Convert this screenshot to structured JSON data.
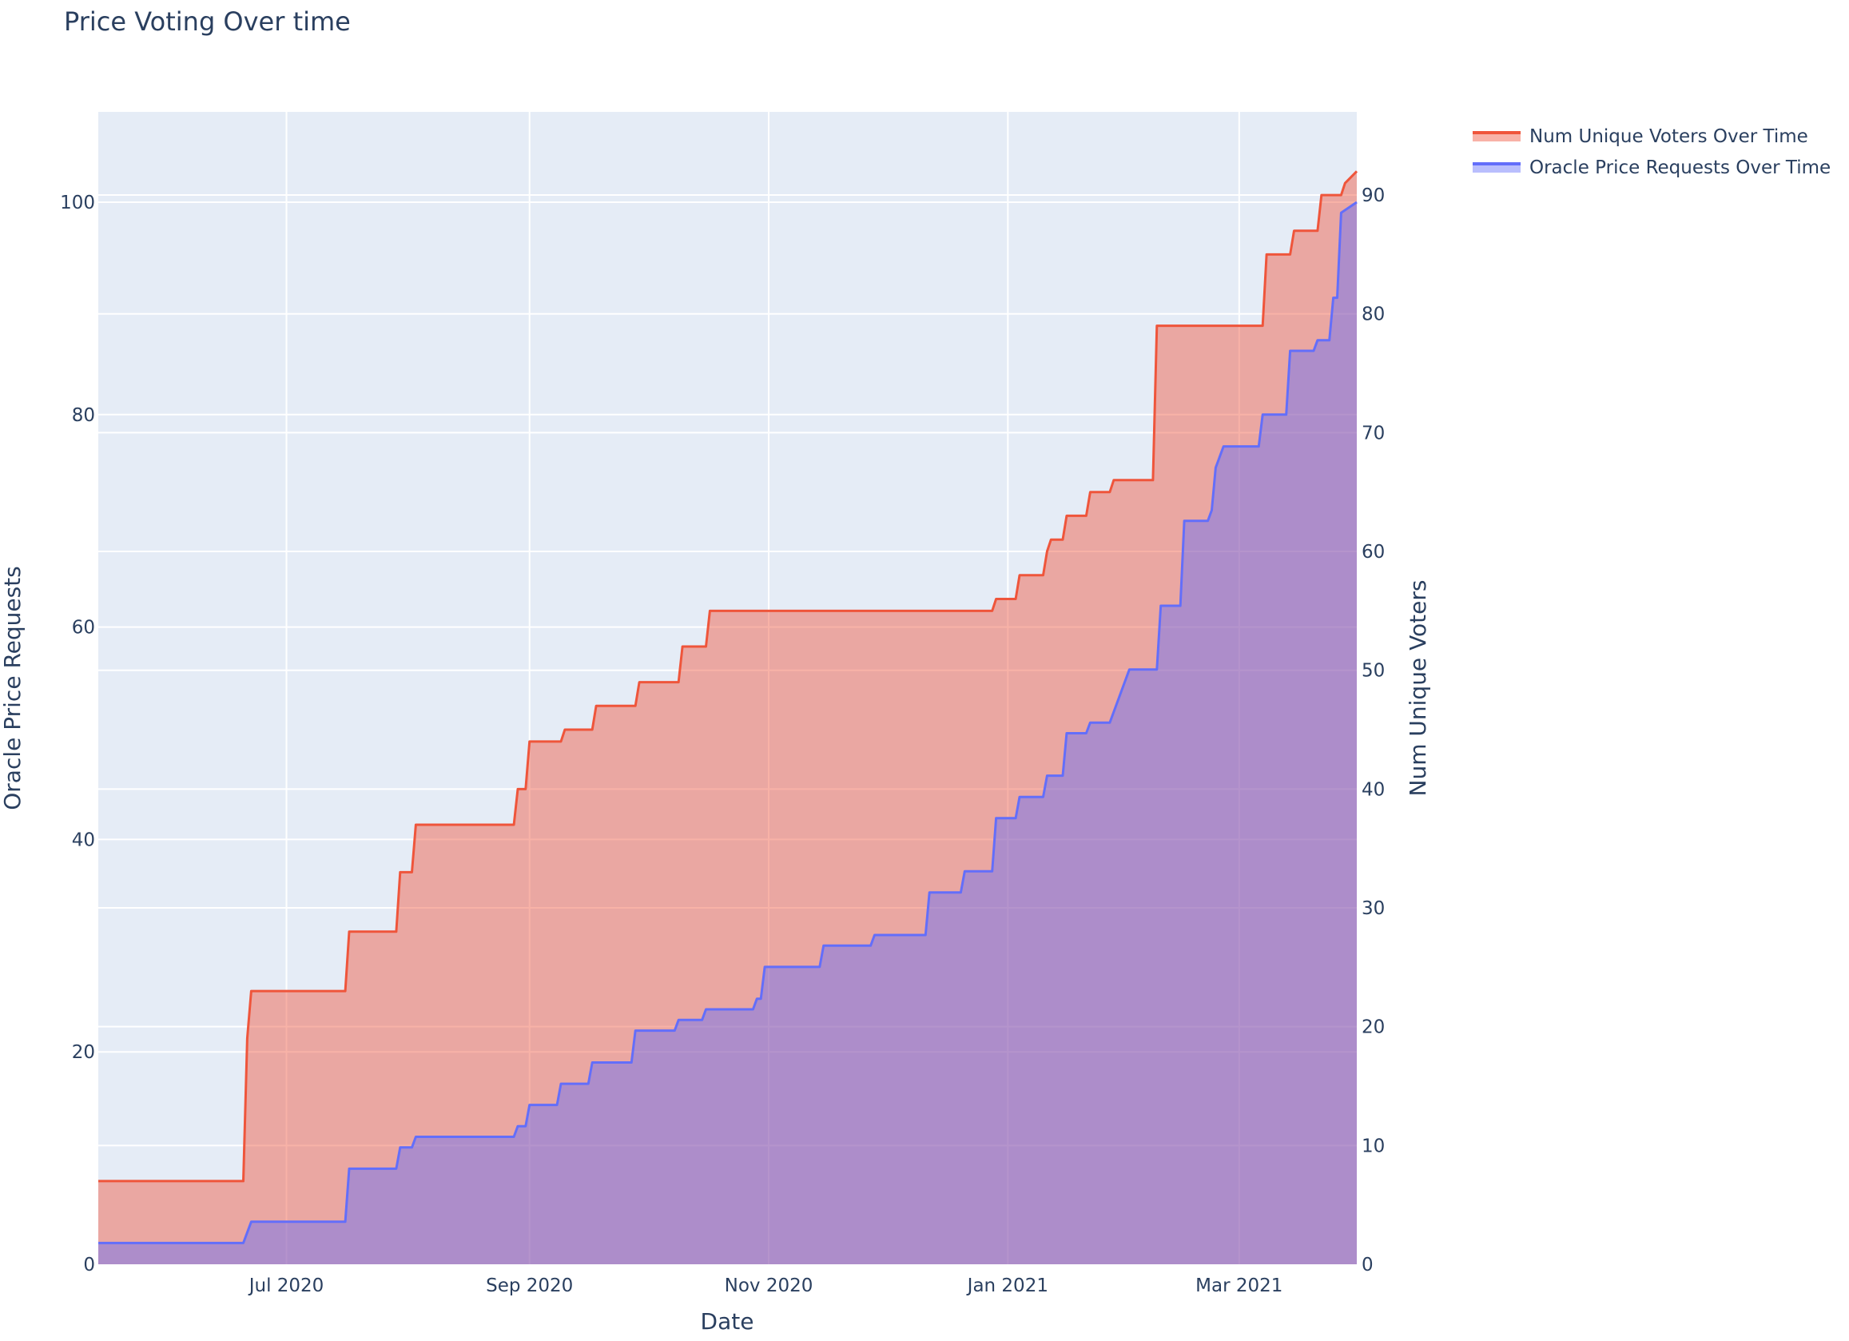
{
  "chart_data": {
    "type": "area",
    "title": "Price Voting Over time",
    "xlabel": "Date",
    "ylabel_left": "Oracle Price Requests",
    "ylabel_right": "Num Unique Voters",
    "x_range": [
      "2020-05-14",
      "2021-03-31"
    ],
    "ylim_left": [
      0,
      108.5
    ],
    "ylim_right": [
      0,
      97
    ],
    "x_ticks": [
      {
        "date": "2020-07-01",
        "label": "Jul 2020"
      },
      {
        "date": "2020-09-01",
        "label": "Sep 2020"
      },
      {
        "date": "2020-11-01",
        "label": "Nov 2020"
      },
      {
        "date": "2021-01-01",
        "label": "Jan 2021"
      },
      {
        "date": "2021-03-01",
        "label": "Mar 2021"
      }
    ],
    "y_ticks_left": [
      0,
      20,
      40,
      60,
      80,
      100
    ],
    "y_ticks_right": [
      0,
      10,
      20,
      30,
      40,
      50,
      60,
      70,
      80,
      90
    ],
    "grid": true,
    "legend_position": "top-right, outside plot",
    "colors": {
      "plot_bg": "#E5ECF6",
      "grid": "#ffffff",
      "voters_line": "#EF553B",
      "voters_fill": "#EF553B",
      "requests_line": "#636EFA",
      "requests_fill": "#636EFA",
      "text": "#2a3f5f"
    },
    "series": [
      {
        "name": "Num Unique Voters Over Time",
        "axis": "right",
        "line_color": "#EF553B",
        "x": [
          "2020-05-14",
          "2020-06-20",
          "2020-06-21",
          "2020-06-22",
          "2020-07-16",
          "2020-07-17",
          "2020-07-29",
          "2020-07-30",
          "2020-08-02",
          "2020-08-03",
          "2020-08-28",
          "2020-08-29",
          "2020-08-31",
          "2020-09-01",
          "2020-09-09",
          "2020-09-10",
          "2020-09-17",
          "2020-09-18",
          "2020-09-28",
          "2020-09-29",
          "2020-10-09",
          "2020-10-10",
          "2020-10-16",
          "2020-10-17",
          "2020-12-28",
          "2020-12-29",
          "2021-01-03",
          "2021-01-04",
          "2021-01-10",
          "2021-01-11",
          "2021-01-12",
          "2021-01-15",
          "2021-01-16",
          "2021-01-21",
          "2021-01-22",
          "2021-01-27",
          "2021-01-28",
          "2021-02-07",
          "2021-02-08",
          "2021-03-07",
          "2021-03-08",
          "2021-03-14",
          "2021-03-15",
          "2021-03-21",
          "2021-03-22",
          "2021-03-27",
          "2021-03-28",
          "2021-03-31"
        ],
        "values": [
          7,
          7,
          19,
          23,
          23,
          28,
          28,
          33,
          33,
          37,
          37,
          40,
          40,
          44,
          44,
          45,
          45,
          47,
          47,
          49,
          49,
          52,
          52,
          55,
          55,
          56,
          56,
          58,
          58,
          60,
          61,
          61,
          63,
          63,
          65,
          65,
          66,
          66,
          79,
          79,
          85,
          85,
          87,
          87,
          90,
          90,
          91,
          92
        ]
      },
      {
        "name": "Oracle Price Requests Over Time",
        "axis": "left",
        "line_color": "#636EFA",
        "x": [
          "2020-05-14",
          "2020-06-20",
          "2020-06-22",
          "2020-07-16",
          "2020-07-17",
          "2020-07-29",
          "2020-07-30",
          "2020-08-02",
          "2020-08-03",
          "2020-08-28",
          "2020-08-29",
          "2020-08-31",
          "2020-09-01",
          "2020-09-08",
          "2020-09-09",
          "2020-09-16",
          "2020-09-17",
          "2020-09-27",
          "2020-09-28",
          "2020-10-08",
          "2020-10-09",
          "2020-10-15",
          "2020-10-16",
          "2020-10-28",
          "2020-10-29",
          "2020-10-30",
          "2020-10-31",
          "2020-11-14",
          "2020-11-15",
          "2020-11-27",
          "2020-11-28",
          "2020-12-11",
          "2020-12-12",
          "2020-12-20",
          "2020-12-21",
          "2020-12-28",
          "2020-12-29",
          "2021-01-03",
          "2021-01-04",
          "2021-01-10",
          "2021-01-11",
          "2021-01-15",
          "2021-01-16",
          "2021-01-21",
          "2021-01-22",
          "2021-01-27",
          "2021-01-28",
          "2021-02-01",
          "2021-02-08",
          "2021-02-09",
          "2021-02-14",
          "2021-02-15",
          "2021-02-21",
          "2021-02-22",
          "2021-02-23",
          "2021-02-25",
          "2021-03-06",
          "2021-03-07",
          "2021-03-13",
          "2021-03-14",
          "2021-03-20",
          "2021-03-21",
          "2021-03-24",
          "2021-03-25",
          "2021-03-26",
          "2021-03-27",
          "2021-03-31"
        ],
        "values": [
          2,
          2,
          4,
          4,
          9,
          9,
          11,
          11,
          12,
          12,
          13,
          13,
          15,
          15,
          17,
          17,
          19,
          19,
          22,
          22,
          23,
          23,
          24,
          24,
          25,
          25,
          28,
          28,
          30,
          30,
          31,
          31,
          35,
          35,
          37,
          37,
          42,
          42,
          44,
          44,
          46,
          46,
          50,
          50,
          51,
          51,
          52,
          56,
          56,
          62,
          62,
          70,
          70,
          71,
          75,
          77,
          77,
          80,
          80,
          86,
          86,
          87,
          87,
          91,
          91,
          99,
          100
        ]
      }
    ]
  }
}
